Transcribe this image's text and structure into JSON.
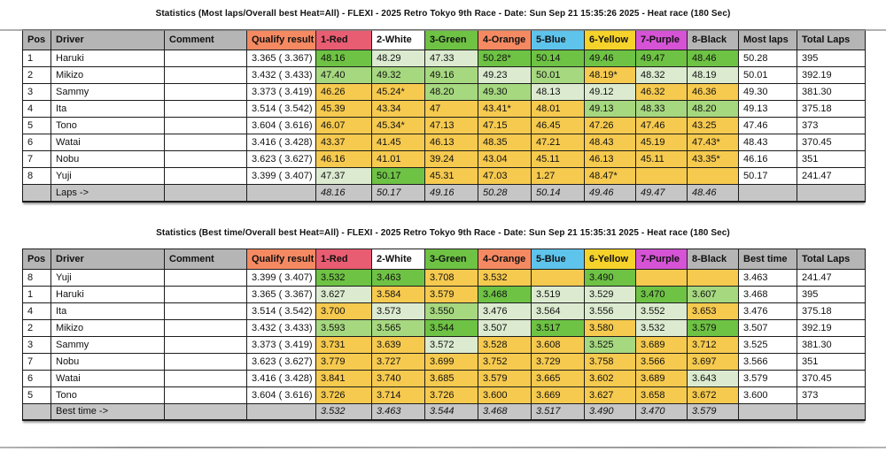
{
  "colors": {
    "header_gray": "#b5b5b5",
    "footer_gray": "#c6c6c6",
    "salmon": "#f58a62",
    "red": "#e85d72",
    "white": "#ffffff",
    "bright_green_header": "#6ec244",
    "blue": "#5ec4ec",
    "yellow_header": "#f5d32b",
    "purple": "#d653d6",
    "g1": "#6ec244",
    "g2": "#a6d87f",
    "g3": "#dcebd0",
    "y": "#f6ca4f"
  },
  "tables": [
    {
      "title": "Statistics (Most laps/Overall best Heat=All) - FLEXI - 2025 Retro Tokyo 9th Race - Date: Sun Sep 21 15:35:26 2025 - Heat race (180 Sec)",
      "columns": [
        {
          "label": "Pos",
          "color": "header_gray"
        },
        {
          "label": "Driver",
          "color": "header_gray"
        },
        {
          "label": "Comment",
          "color": "header_gray"
        },
        {
          "label": "Qualify result",
          "color": "salmon"
        },
        {
          "label": "1-Red",
          "color": "red"
        },
        {
          "label": "2-White",
          "color": "white"
        },
        {
          "label": "3-Green",
          "color": "bright_green_header"
        },
        {
          "label": "4-Orange",
          "color": "salmon"
        },
        {
          "label": "5-Blue",
          "color": "blue"
        },
        {
          "label": "6-Yellow",
          "color": "yellow_header"
        },
        {
          "label": "7-Purple",
          "color": "purple"
        },
        {
          "label": "8-Black",
          "color": "header_gray"
        },
        {
          "label": "Most laps",
          "color": "header_gray"
        },
        {
          "label": "Total Laps",
          "color": "header_gray"
        }
      ],
      "rows": [
        {
          "pos": "1",
          "driver": "Haruki",
          "comment": "",
          "qualify": "3.365 ( 3.367)",
          "qbold": true,
          "cells": [
            [
              "48.16",
              "g1",
              1
            ],
            [
              "48.29",
              "g3",
              0
            ],
            [
              "47.33",
              "g3",
              0
            ],
            [
              "50.28*",
              "g1",
              1
            ],
            [
              "50.14",
              "g1",
              1
            ],
            [
              "49.46",
              "g1",
              1
            ],
            [
              "49.47",
              "g1",
              1
            ],
            [
              "48.46",
              "g1",
              1
            ]
          ],
          "result": "50.28",
          "rbold": true,
          "total": "395",
          "tbold": true
        },
        {
          "pos": "2",
          "driver": "Mikizo",
          "comment": "",
          "qualify": "3.432 ( 3.433)",
          "cells": [
            [
              "47.40",
              "g2",
              0
            ],
            [
              "49.32",
              "g2",
              0
            ],
            [
              "49.16",
              "g2",
              1
            ],
            [
              "49.23",
              "g3",
              0
            ],
            [
              "50.01",
              "g2",
              0
            ],
            [
              "48.19*",
              "y",
              0
            ],
            [
              "48.32",
              "g3",
              0
            ],
            [
              "48.19",
              "g3",
              0
            ]
          ],
          "result": "50.01",
          "total": "392.19"
        },
        {
          "pos": "3",
          "driver": "Sammy",
          "comment": "",
          "qualify": "3.373 ( 3.419)",
          "cells": [
            [
              "46.26",
              "y",
              0
            ],
            [
              "45.24*",
              "y",
              0
            ],
            [
              "48.20",
              "g2",
              0
            ],
            [
              "49.30",
              "g2",
              0
            ],
            [
              "48.13",
              "g3",
              0
            ],
            [
              "49.12",
              "g3",
              0
            ],
            [
              "46.32",
              "y",
              0
            ],
            [
              "46.36",
              "y",
              0
            ]
          ],
          "result": "49.30",
          "total": "381.30"
        },
        {
          "pos": "4",
          "driver": "Ita",
          "comment": "",
          "qualify": "3.514 ( 3.542)",
          "cells": [
            [
              "45.39",
              "y",
              0
            ],
            [
              "43.34",
              "y",
              0
            ],
            [
              "47",
              "y",
              0
            ],
            [
              "43.41*",
              "y",
              0
            ],
            [
              "48.01",
              "y",
              0
            ],
            [
              "49.13",
              "g2",
              0
            ],
            [
              "48.33",
              "g2",
              0
            ],
            [
              "48.20",
              "g2",
              0
            ]
          ],
          "result": "49.13",
          "total": "375.18"
        },
        {
          "pos": "5",
          "driver": "Tono",
          "comment": "",
          "qualify": "3.604 ( 3.616)",
          "cells": [
            [
              "46.07",
              "y",
              0
            ],
            [
              "45.34*",
              "y",
              0
            ],
            [
              "47.13",
              "y",
              0
            ],
            [
              "47.15",
              "y",
              0
            ],
            [
              "46.45",
              "y",
              0
            ],
            [
              "47.26",
              "y",
              0
            ],
            [
              "47.46",
              "y",
              0
            ],
            [
              "43.25",
              "y",
              0
            ]
          ],
          "result": "47.46",
          "total": "373"
        },
        {
          "pos": "6",
          "driver": "Watai",
          "comment": "",
          "qualify": "3.416 ( 3.428)",
          "cells": [
            [
              "43.37",
              "y",
              0
            ],
            [
              "41.45",
              "y",
              0
            ],
            [
              "46.13",
              "y",
              0
            ],
            [
              "48.35",
              "y",
              0
            ],
            [
              "47.21",
              "y",
              0
            ],
            [
              "48.43",
              "y",
              0
            ],
            [
              "45.19",
              "y",
              0
            ],
            [
              "47.43*",
              "y",
              0
            ]
          ],
          "result": "48.43",
          "total": "370.45"
        },
        {
          "pos": "7",
          "driver": "Nobu",
          "comment": "",
          "qualify": "3.623 ( 3.627)",
          "cells": [
            [
              "46.16",
              "y",
              0
            ],
            [
              "41.01",
              "y",
              0
            ],
            [
              "39.24",
              "y",
              0
            ],
            [
              "43.04",
              "y",
              0
            ],
            [
              "45.11",
              "y",
              0
            ],
            [
              "46.13",
              "y",
              0
            ],
            [
              "45.11",
              "y",
              0
            ],
            [
              "43.35*",
              "y",
              0
            ]
          ],
          "result": "46.16",
          "total": "351"
        },
        {
          "pos": "8",
          "driver": "Yuji",
          "comment": "",
          "qualify": "3.399 ( 3.407)",
          "cells": [
            [
              "47.37",
              "g3",
              0
            ],
            [
              "50.17",
              "g1",
              1
            ],
            [
              "45.31",
              "y",
              0
            ],
            [
              "47.03",
              "y",
              0
            ],
            [
              "1.27",
              "y",
              0
            ],
            [
              "48.47*",
              "y",
              0
            ],
            [
              "",
              "y",
              0
            ],
            [
              "",
              "y",
              0
            ]
          ],
          "result": "50.17",
          "total": "241.47"
        }
      ],
      "footer": {
        "label": "Laps ->",
        "values": [
          "48.16",
          "50.17",
          "49.16",
          "50.28",
          "50.14",
          "49.46",
          "49.47",
          "48.46"
        ]
      }
    },
    {
      "title": "Statistics (Best time/Overall best Heat=All) - FLEXI - 2025 Retro Tokyo 9th Race - Date: Sun Sep 21 15:35:31 2025 - Heat race (180 Sec)",
      "columns": [
        {
          "label": "Pos",
          "color": "header_gray"
        },
        {
          "label": "Driver",
          "color": "header_gray"
        },
        {
          "label": "Comment",
          "color": "header_gray"
        },
        {
          "label": "Qualify result",
          "color": "salmon"
        },
        {
          "label": "1-Red",
          "color": "red"
        },
        {
          "label": "2-White",
          "color": "white"
        },
        {
          "label": "3-Green",
          "color": "bright_green_header"
        },
        {
          "label": "4-Orange",
          "color": "salmon"
        },
        {
          "label": "5-Blue",
          "color": "blue"
        },
        {
          "label": "6-Yellow",
          "color": "yellow_header"
        },
        {
          "label": "7-Purple",
          "color": "purple"
        },
        {
          "label": "8-Black",
          "color": "header_gray"
        },
        {
          "label": "Best time",
          "color": "header_gray"
        },
        {
          "label": "Total Laps",
          "color": "header_gray"
        }
      ],
      "rows": [
        {
          "pos": "8",
          "driver": "Yuji",
          "comment": "",
          "qualify": "3.399 ( 3.407)",
          "cells": [
            [
              "3.532",
              "g1",
              1
            ],
            [
              "3.463",
              "g1",
              1
            ],
            [
              "3.708",
              "y",
              0
            ],
            [
              "3.532",
              "y",
              0
            ],
            [
              "",
              "y",
              0
            ],
            [
              "3.490",
              "g1",
              1
            ],
            [
              "",
              "y",
              0
            ],
            [
              "",
              "y",
              0
            ]
          ],
          "result": "3.463",
          "rbold": true,
          "total": "241.47"
        },
        {
          "pos": "1",
          "driver": "Haruki",
          "comment": "",
          "qualify": "3.365 ( 3.367)",
          "qbold": true,
          "cells": [
            [
              "3.627",
              "g3",
              0
            ],
            [
              "3.584",
              "y",
              0
            ],
            [
              "3.579",
              "y",
              0
            ],
            [
              "3.468",
              "g1",
              1
            ],
            [
              "3.519",
              "g3",
              0
            ],
            [
              "3.529",
              "g3",
              0
            ],
            [
              "3.470",
              "g1",
              1
            ],
            [
              "3.607",
              "g2",
              0
            ]
          ],
          "result": "3.468",
          "total": "395",
          "tbold": true
        },
        {
          "pos": "4",
          "driver": "Ita",
          "comment": "",
          "qualify": "3.514 ( 3.542)",
          "cells": [
            [
              "3.700",
              "y",
              0
            ],
            [
              "3.573",
              "g3",
              0
            ],
            [
              "3.550",
              "g2",
              0
            ],
            [
              "3.476",
              "g3",
              0
            ],
            [
              "3.564",
              "g3",
              0
            ],
            [
              "3.556",
              "g3",
              0
            ],
            [
              "3.552",
              "g3",
              0
            ],
            [
              "3.653",
              "y",
              0
            ]
          ],
          "result": "3.476",
          "total": "375.18"
        },
        {
          "pos": "2",
          "driver": "Mikizo",
          "comment": "",
          "qualify": "3.432 ( 3.433)",
          "cells": [
            [
              "3.593",
              "g2",
              0
            ],
            [
              "3.565",
              "g2",
              0
            ],
            [
              "3.544",
              "g1",
              1
            ],
            [
              "3.507",
              "g3",
              0
            ],
            [
              "3.517",
              "g1",
              1
            ],
            [
              "3.580",
              "y",
              0
            ],
            [
              "3.532",
              "g3",
              0
            ],
            [
              "3.579",
              "g1",
              1
            ]
          ],
          "result": "3.507",
          "total": "392.19"
        },
        {
          "pos": "3",
          "driver": "Sammy",
          "comment": "",
          "qualify": "3.373 ( 3.419)",
          "cells": [
            [
              "3.731",
              "y",
              0
            ],
            [
              "3.639",
              "y",
              0
            ],
            [
              "3.572",
              "g3",
              0
            ],
            [
              "3.528",
              "y",
              0
            ],
            [
              "3.608",
              "y",
              0
            ],
            [
              "3.525",
              "g2",
              0
            ],
            [
              "3.689",
              "y",
              0
            ],
            [
              "3.712",
              "y",
              0
            ]
          ],
          "result": "3.525",
          "total": "381.30"
        },
        {
          "pos": "7",
          "driver": "Nobu",
          "comment": "",
          "qualify": "3.623 ( 3.627)",
          "cells": [
            [
              "3.779",
              "y",
              0
            ],
            [
              "3.727",
              "y",
              0
            ],
            [
              "3.699",
              "y",
              0
            ],
            [
              "3.752",
              "y",
              0
            ],
            [
              "3.729",
              "y",
              0
            ],
            [
              "3.758",
              "y",
              0
            ],
            [
              "3.566",
              "y",
              0
            ],
            [
              "3.697",
              "y",
              0
            ]
          ],
          "result": "3.566",
          "total": "351"
        },
        {
          "pos": "6",
          "driver": "Watai",
          "comment": "",
          "qualify": "3.416 ( 3.428)",
          "cells": [
            [
              "3.841",
              "y",
              0
            ],
            [
              "3.740",
              "y",
              0
            ],
            [
              "3.685",
              "y",
              0
            ],
            [
              "3.579",
              "y",
              0
            ],
            [
              "3.665",
              "y",
              0
            ],
            [
              "3.602",
              "y",
              0
            ],
            [
              "3.689",
              "y",
              0
            ],
            [
              "3.643",
              "g3",
              0
            ]
          ],
          "result": "3.579",
          "total": "370.45"
        },
        {
          "pos": "5",
          "driver": "Tono",
          "comment": "",
          "qualify": "3.604 ( 3.616)",
          "cells": [
            [
              "3.726",
              "y",
              0
            ],
            [
              "3.714",
              "y",
              0
            ],
            [
              "3.726",
              "y",
              0
            ],
            [
              "3.600",
              "y",
              0
            ],
            [
              "3.669",
              "y",
              0
            ],
            [
              "3.627",
              "y",
              0
            ],
            [
              "3.658",
              "y",
              0
            ],
            [
              "3.672",
              "y",
              0
            ]
          ],
          "result": "3.600",
          "total": "373"
        }
      ],
      "footer": {
        "label": "Best time ->",
        "values": [
          "3.532",
          "3.463",
          "3.544",
          "3.468",
          "3.517",
          "3.490",
          "3.470",
          "3.579"
        ]
      }
    }
  ]
}
